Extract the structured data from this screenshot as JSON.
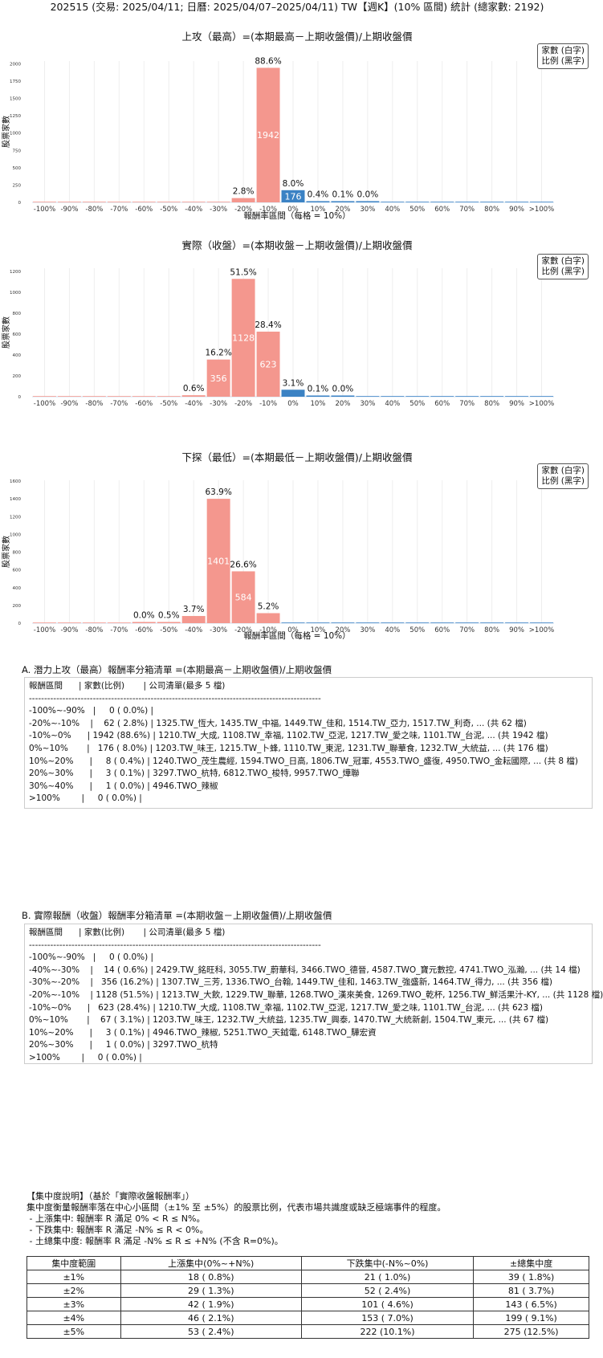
{
  "header": {
    "title": "202515 (交易: 2025/04/11; 日曆: 2025/04/07–2025/04/11) TW【週K】(10% 區間) 統計 (總家數: 2192)"
  },
  "legend_lines": [
    "家數 (白字)",
    "比例 (黑字)"
  ],
  "chart_data": [
    {
      "type": "bar",
      "title": "上攻（最高）=(本期最高－上期收盤價)/上期收盤價",
      "xlabel": "報酬率區間（每格 = 10%）",
      "ylabel": "股票家數",
      "categories": [
        "-100%",
        "-90%",
        "-80%",
        "-70%",
        "-60%",
        "-50%",
        "-40%",
        "-30%",
        "-20%",
        "-10%",
        "0%",
        "10%",
        "20%",
        "30%",
        "40%",
        "50%",
        "60%",
        "70%",
        "80%",
        "90%",
        ">100%"
      ],
      "values": [
        0,
        0,
        0,
        0,
        0,
        0,
        0,
        0,
        62,
        1942,
        176,
        8,
        3,
        1,
        0,
        0,
        0,
        0,
        0,
        0,
        0
      ],
      "percent_labels": [
        "",
        "",
        "",
        "",
        "",
        "",
        "",
        "",
        "2.8%",
        "88.6%",
        "8.0%",
        "0.4%",
        "0.1%",
        "0.0%",
        "",
        "",
        "",
        "",
        "",
        "",
        ""
      ],
      "yticks": [
        0,
        250,
        500,
        750,
        1000,
        1250,
        1500,
        1750,
        2000
      ],
      "ylim": [
        0,
        2040
      ],
      "colors": {
        "negative": "#f4978e",
        "positive": "#3b82c4"
      }
    },
    {
      "type": "bar",
      "title": "實際（收盤）=(本期收盤－上期收盤價)/上期收盤價",
      "xlabel": "",
      "ylabel": "股票家數",
      "categories": [
        "-100%",
        "-90%",
        "-80%",
        "-70%",
        "-60%",
        "-50%",
        "-40%",
        "-30%",
        "-20%",
        "-10%",
        "0%",
        "10%",
        "20%",
        "30%",
        "40%",
        "50%",
        "60%",
        "70%",
        "80%",
        "90%",
        ">100%"
      ],
      "values": [
        0,
        0,
        0,
        0,
        0,
        0,
        14,
        356,
        1128,
        623,
        67,
        3,
        1,
        0,
        0,
        0,
        0,
        0,
        0,
        0,
        0
      ],
      "percent_labels": [
        "",
        "",
        "",
        "",
        "",
        "",
        "0.6%",
        "16.2%",
        "51.5%",
        "28.4%",
        "3.1%",
        "0.1%",
        "0.0%",
        "",
        "",
        "",
        "",
        "",
        "",
        "",
        ""
      ],
      "yticks": [
        0,
        200,
        400,
        600,
        800,
        1000,
        1200
      ],
      "ylim": [
        0,
        1230
      ],
      "colors": {
        "negative": "#f4978e",
        "positive": "#3b82c4"
      }
    },
    {
      "type": "bar",
      "title": "下探（最低）=(本期最低－上期收盤價)/上期收盤價",
      "xlabel": "報酬率區間（每格 = 10%）",
      "ylabel": "股票家數",
      "categories": [
        "-100%",
        "-90%",
        "-80%",
        "-70%",
        "-60%",
        "-50%",
        "-40%",
        "-30%",
        "-20%",
        "-10%",
        "0%",
        "10%",
        "20%",
        "30%",
        "40%",
        "50%",
        "60%",
        "70%",
        "80%",
        "90%",
        ">100%"
      ],
      "values": [
        0,
        0,
        0,
        0,
        1,
        11,
        81,
        1401,
        584,
        113,
        0,
        0,
        0,
        0,
        0,
        0,
        0,
        0,
        0,
        0,
        0
      ],
      "percent_labels": [
        "",
        "",
        "",
        "",
        "0.0%",
        "0.5%",
        "3.7%",
        "63.9%",
        "26.6%",
        "5.2%",
        "",
        "",
        "",
        "",
        "",
        "",
        "",
        "",
        "",
        "",
        ""
      ],
      "yticks": [
        0,
        200,
        400,
        600,
        800,
        1000,
        1200,
        1400,
        1600
      ],
      "ylim": [
        0,
        1610
      ],
      "colors": {
        "negative": "#f4978e",
        "positive": "#3b82c4"
      }
    }
  ],
  "section_a": {
    "heading": "A. 潛力上攻（最高）報酬率分箱清單 =(本期最高－上期收盤價)/上期收盤價",
    "lines": [
      "報酬區間      | 家數(比例)       | 公司清單(最多 5 檔)",
      "------------------------------------------------------------------------------------------------",
      "-100%~-90%   |     0 ( 0.0%) |",
      "-20%~-10%    |    62 ( 2.8%) | 1325.TW_恆大, 1435.TW_中福, 1449.TW_佳和, 1514.TW_亞力, 1517.TW_利奇, ... (共 62 檔)",
      "-10%~0%      | 1942 (88.6%) | 1210.TW_大成, 1108.TW_幸福, 1102.TW_亞泥, 1217.TW_愛之味, 1101.TW_台泥, ... (共 1942 檔)",
      "0%~10%       |   176 ( 8.0%) | 1203.TW_味王, 1215.TW_卜蜂, 1110.TW_東泥, 1231.TW_聯華食, 1232.TW_大統益, ... (共 176 檔)",
      "10%~20%      |     8 ( 0.4%) | 1240.TWO_茂生農經, 1594.TWO_日高, 1806.TW_冠軍, 4553.TWO_盛復, 4950.TWO_金耘國際, ... (共 8 檔)",
      "20%~30%      |     3 ( 0.1%) | 3297.TWO_杭特, 6812.TWO_梭特, 9957.TWO_燁聯",
      "30%~40%      |     1 ( 0.0%) | 4946.TWO_辣椒",
      ">100%        |     0 ( 0.0%) |"
    ]
  },
  "section_b": {
    "heading": "B. 實際報酬（收盤）報酬率分箱清單 =(本期收盤－上期收盤價)/上期收盤價",
    "lines": [
      "報酬區間      | 家數(比例)       | 公司清單(最多 5 檔)",
      "------------------------------------------------------------------------------------------------",
      "-100%~-90%   |     0 ( 0.0%) |",
      "-40%~-30%    |    14 ( 0.6%) | 2429.TW_銘旺科, 3055.TW_蔚華科, 3466.TWO_德晉, 4587.TWO_寶元數控, 4741.TWO_泓瀚, ... (共 14 檔)",
      "-30%~-20%    |   356 (16.2%) | 1307.TW_三芳, 1336.TWO_台翰, 1449.TW_佳和, 1463.TW_強盛新, 1464.TW_得力, ... (共 356 檔)",
      "-20%~-10%    | 1128 (51.5%) | 1213.TW_大飲, 1229.TW_聯華, 1268.TWO_漢來美食, 1269.TWO_乾杯, 1256.TW_鮮活果汁-KY, ... (共 1128 檔)",
      "-10%~0%      |   623 (28.4%) | 1210.TW_大成, 1108.TW_幸福, 1102.TW_亞泥, 1217.TW_愛之味, 1101.TW_台泥, ... (共 623 檔)",
      "0%~10%       |    67 ( 3.1%) | 1203.TW_味王, 1232.TW_大統益, 1235.TW_興泰, 1470.TW_大統新創, 1504.TW_東元, ... (共 67 檔)",
      "10%~20%      |     3 ( 0.1%) | 4946.TWO_辣椒, 5251.TWO_天鉞電, 6148.TWO_驊宏資",
      "20%~30%      |     1 ( 0.0%) | 3297.TWO_杭特",
      ">100%        |     0 ( 0.0%) |"
    ]
  },
  "concentration": {
    "heading": "【集中度說明】（基於「實際收盤報酬率」）",
    "desc": "集中度衡量報酬率落在中心小區間（±1% 至 ±5%）的股票比例，代表市場共識度或缺乏極端事件的程度。",
    "bullets": [
      " - 上漲集中: 報酬率 R 滿足 0% < R ≤ N%。",
      " - 下跌集中: 報酬率 R 滿足 -N% ≤ R < 0%。",
      " - 土總集中度: 報酬率 R 滿足 -N% ≤ R ≤ +N% (不含 R=0%)。"
    ],
    "columns": [
      "集中度範圍",
      "上漲集中(0%~+N%)",
      "下跌集中(-N%~0%)",
      "±總集中度"
    ],
    "rows": [
      [
        "±1%",
        "18 ( 0.8%)",
        "21 ( 1.0%)",
        "39 ( 1.8%)"
      ],
      [
        "±2%",
        "29 ( 1.3%)",
        "52 ( 2.4%)",
        "81 ( 3.7%)"
      ],
      [
        "±3%",
        "42 ( 1.9%)",
        "101 ( 4.6%)",
        "143 ( 6.5%)"
      ],
      [
        "±4%",
        "46 ( 2.1%)",
        "153 ( 7.0%)",
        "199 ( 9.1%)"
      ],
      [
        "±5%",
        "53 ( 2.4%)",
        "222 (10.1%)",
        "275 (12.5%)"
      ]
    ]
  }
}
